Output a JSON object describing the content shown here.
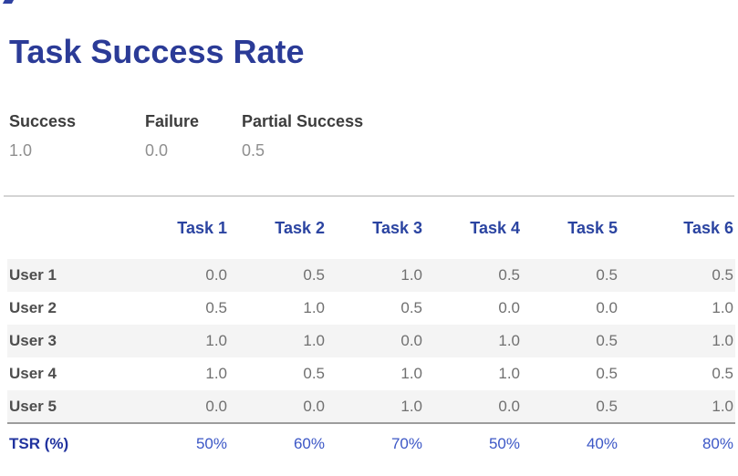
{
  "title": "Task Success Rate",
  "legend": {
    "items": [
      {
        "label": "Success",
        "value": "1.0"
      },
      {
        "label": "Failure",
        "value": "0.0"
      },
      {
        "label": "Partial Success",
        "value": "0.5"
      }
    ]
  },
  "table": {
    "column_headers": [
      "Task 1",
      "Task 2",
      "Task 3",
      "Task 4",
      "Task 5",
      "Task 6"
    ],
    "rows": [
      {
        "label": "User 1",
        "values": [
          "0.0",
          "0.5",
          "1.0",
          "0.5",
          "0.5",
          "0.5"
        ]
      },
      {
        "label": "User 2",
        "values": [
          "0.5",
          "1.0",
          "0.5",
          "0.0",
          "0.0",
          "1.0"
        ]
      },
      {
        "label": "User 3",
        "values": [
          "1.0",
          "1.0",
          "0.0",
          "1.0",
          "0.5",
          "1.0"
        ]
      },
      {
        "label": "User 4",
        "values": [
          "1.0",
          "0.5",
          "1.0",
          "1.0",
          "0.5",
          "0.5"
        ]
      },
      {
        "label": "User 5",
        "values": [
          "0.0",
          "0.0",
          "1.0",
          "0.0",
          "0.5",
          "1.0"
        ]
      }
    ],
    "footer": {
      "label": "TSR (%)",
      "values": [
        "50%",
        "60%",
        "70%",
        "50%",
        "40%",
        "80%"
      ]
    }
  },
  "chart_data": {
    "type": "table",
    "title": "Task Success Rate",
    "value_legend": {
      "Success": 1.0,
      "Failure": 0.0,
      "Partial Success": 0.5
    },
    "columns": [
      "Task 1",
      "Task 2",
      "Task 3",
      "Task 4",
      "Task 5",
      "Task 6"
    ],
    "rows": [
      {
        "label": "User 1",
        "values": [
          0.0,
          0.5,
          1.0,
          0.5,
          0.5,
          0.5
        ]
      },
      {
        "label": "User 2",
        "values": [
          0.5,
          1.0,
          0.5,
          0.0,
          0.0,
          1.0
        ]
      },
      {
        "label": "User 3",
        "values": [
          1.0,
          1.0,
          0.0,
          1.0,
          0.5,
          1.0
        ]
      },
      {
        "label": "User 4",
        "values": [
          1.0,
          0.5,
          1.0,
          1.0,
          0.5,
          0.5
        ]
      },
      {
        "label": "User 5",
        "values": [
          0.0,
          0.0,
          1.0,
          0.0,
          0.5,
          1.0
        ]
      }
    ],
    "summary_row": {
      "label": "TSR (%)",
      "values_pct": [
        50,
        60,
        70,
        50,
        40,
        80
      ]
    }
  },
  "colors": {
    "title_blue": "#2b3b97",
    "header_blue": "#2b44a1",
    "tsr_label_blue": "#21339f",
    "tsr_value_blue": "#3c57c6",
    "stripe_gray": "#f4f4f4",
    "divider_light": "#d4d4d4",
    "divider_dark": "#9c9c9c"
  }
}
